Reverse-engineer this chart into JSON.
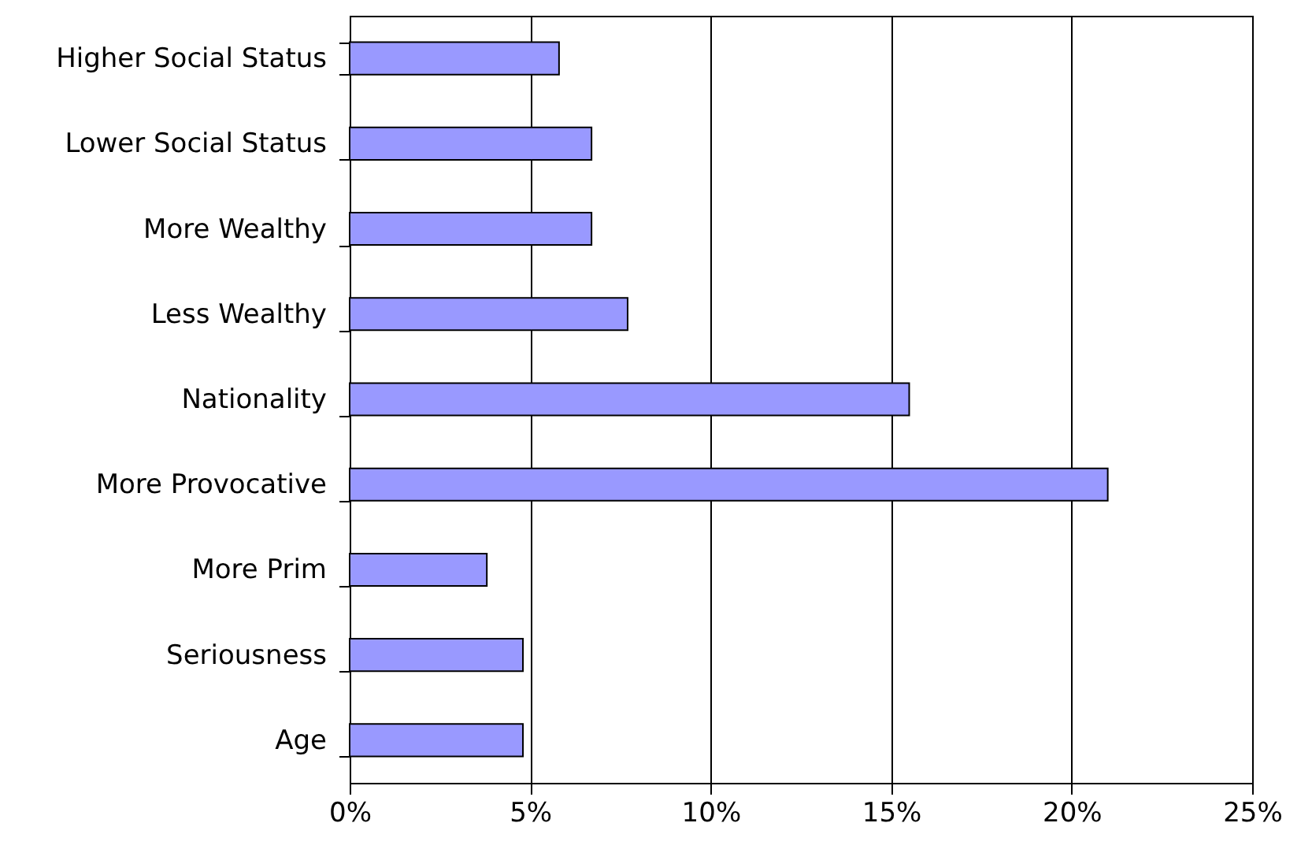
{
  "chart_data": {
    "type": "bar",
    "orientation": "horizontal",
    "categories": [
      "Higher Social Status",
      "Lower Social Status",
      "More Wealthy",
      "Less Wealthy",
      "Nationality",
      "More Provocative",
      "More Prim",
      "Seriousness",
      "Age"
    ],
    "values": [
      5.8,
      6.7,
      6.7,
      7.7,
      15.5,
      21.0,
      3.8,
      4.8,
      4.8
    ],
    "color": "#9999ff",
    "xlim": [
      0,
      25
    ],
    "xticks": [
      {
        "value": 0,
        "label": "0%"
      },
      {
        "value": 5,
        "label": "5%"
      },
      {
        "value": 10,
        "label": "10%"
      },
      {
        "value": 15,
        "label": "15%"
      },
      {
        "value": 20,
        "label": "20%"
      },
      {
        "value": 25,
        "label": "25%"
      }
    ],
    "grid": "x"
  }
}
